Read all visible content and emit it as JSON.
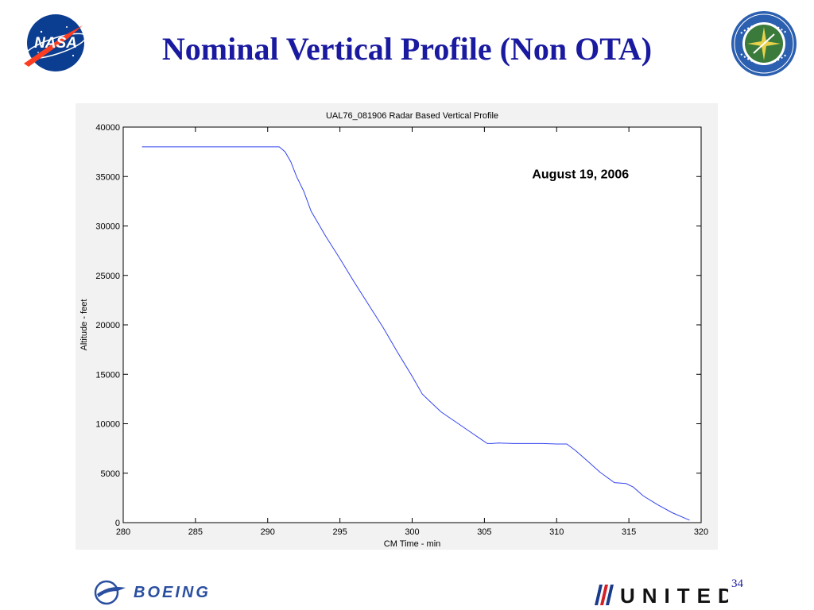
{
  "slide": {
    "title": "Nominal Vertical Profile (Non OTA)",
    "page_number": "34"
  },
  "logos": {
    "top_left": "NASA",
    "top_right": "FEDERAL AVIATION ADMINISTRATION",
    "bottom_left": "BOEING",
    "bottom_right": "UNITED"
  },
  "colors": {
    "title": "#1a1aa0",
    "series_line": "#3344ee"
  },
  "chart_data": {
    "type": "line",
    "title": "UAL76_081906 Radar Based Vertical Profile",
    "xlabel": "CM Time - min",
    "ylabel": "Altitude - feet",
    "annotation": "August 19, 2006",
    "xlim": [
      280,
      320
    ],
    "ylim": [
      0,
      40000
    ],
    "xticks": [
      280,
      285,
      290,
      295,
      300,
      305,
      310,
      315,
      320
    ],
    "yticks": [
      0,
      5000,
      10000,
      15000,
      20000,
      25000,
      30000,
      35000,
      40000
    ],
    "grid": false,
    "series": [
      {
        "x": [
          281.3,
          283,
          285,
          287,
          289,
          290.8,
          291.2,
          291.6,
          292,
          292.5,
          293,
          294,
          295,
          296,
          297,
          298,
          299,
          300,
          300.7,
          301.2,
          302,
          303,
          304,
          304.7,
          305.2,
          305.5,
          306,
          307,
          308,
          309,
          310,
          310.7,
          311.3,
          312,
          313,
          314,
          314.8,
          315.3,
          316,
          317,
          318,
          319.2
        ],
        "y": [
          38000,
          38000,
          38000,
          38000,
          38000,
          38000,
          37500,
          36500,
          35000,
          33500,
          31500,
          29000,
          26700,
          24300,
          22000,
          19700,
          17200,
          14800,
          13000,
          12300,
          11200,
          10200,
          9200,
          8500,
          8000,
          8000,
          8050,
          8000,
          8000,
          8000,
          7950,
          7950,
          7300,
          6400,
          5100,
          4050,
          3950,
          3600,
          2700,
          1800,
          1000,
          250
        ]
      }
    ]
  }
}
